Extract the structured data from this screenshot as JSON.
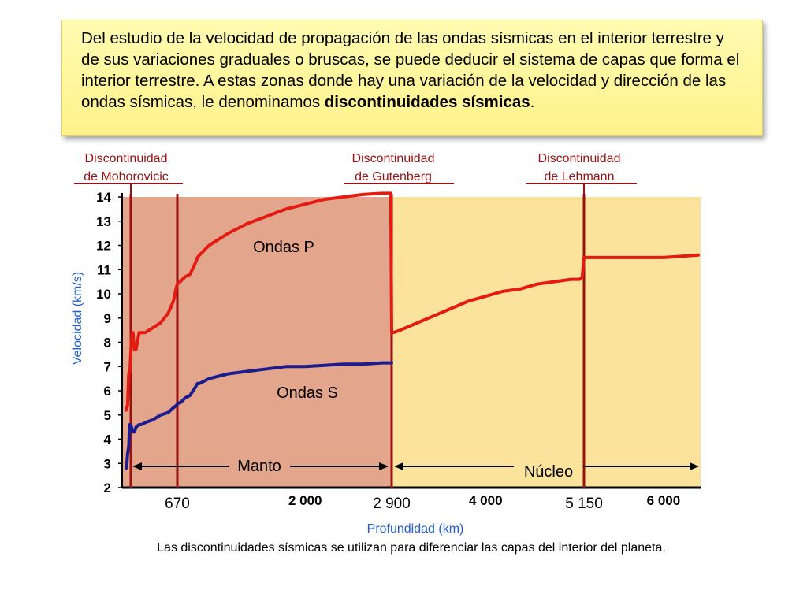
{
  "intro": {
    "text_before": "Del estudio de la velocidad de propagación de las ondas sísmicas en el interior terrestre y de sus variaciones graduales o bruscas, se puede deducir el sistema de capas que forma el interior terrestre. A estas zonas donde hay una variación de la velocidad y dirección de las ondas sísmicas, le denominamos ",
    "text_bold": "discontinuidades sísmicas",
    "text_after": "."
  },
  "caption": "Las discontinuidades sísmicas se utilizan para diferenciar las capas del interior del planeta.",
  "colors": {
    "p_wave": "#e31b12",
    "s_wave": "#1c1c8c",
    "mantle_bg": "#e3a68c",
    "core_bg": "#fbe39c",
    "discontinuity": "#9b1111",
    "axis_label": "#1f5fd6"
  },
  "chart_data": {
    "type": "line",
    "xlabel": "Profundidad (km)",
    "ylabel": "Velocidad (km/s)",
    "ylim": [
      2,
      14
    ],
    "xlim": [
      0,
      6371
    ],
    "y_ticks": [
      "2",
      "3",
      "4",
      "5",
      "6",
      "7",
      "8",
      "9",
      "10",
      "11",
      "12",
      "13",
      "14"
    ],
    "x_ticks": [
      {
        "value": 670,
        "label": "670",
        "bold": false
      },
      {
        "value": 2000,
        "label": "2 000",
        "bold": true
      },
      {
        "value": 2900,
        "label": "2 900",
        "bold": false
      },
      {
        "value": 4000,
        "label": "4 000",
        "bold": true
      },
      {
        "value": 5150,
        "label": "5 150",
        "bold": false
      },
      {
        "value": 6000,
        "label": "6 000",
        "bold": true
      }
    ],
    "discontinuities": [
      {
        "name": "Discontinuidad de Mohorovicic",
        "line1": "Discontinuidad",
        "line2": "de Mohorovicic",
        "depth": 35
      },
      {
        "name": "Discontinuidad de Gutenberg",
        "line1": "Discontinuidad",
        "line2": "de Gutenberg",
        "depth": 2900
      },
      {
        "name": "Discontinuidad de Lehmann",
        "line1": "Discontinuidad",
        "line2": "de Lehmann",
        "depth": 5150
      }
    ],
    "extra_line_depth": 670,
    "regions": [
      {
        "label": "Manto",
        "from": 35,
        "to": 2900
      },
      {
        "label": "Núcleo",
        "from": 2900,
        "to": 6371
      }
    ],
    "series": [
      {
        "name": "Ondas P",
        "x": [
          0,
          20,
          35,
          50,
          70,
          80,
          90,
          100,
          110,
          130,
          170,
          210,
          250,
          350,
          450,
          550,
          620,
          660,
          670,
          700,
          750,
          800,
          850,
          880,
          900,
          1000,
          1200,
          1400,
          1600,
          1800,
          2000,
          2200,
          2400,
          2600,
          2800,
          2890,
          2900,
          2920,
          3000,
          3200,
          3400,
          3600,
          3800,
          4000,
          4200,
          4400,
          4600,
          4800,
          5000,
          5100,
          5130,
          5150,
          5200,
          5500,
          5800,
          6000,
          6200,
          6371
        ],
        "values": [
          5.2,
          5.4,
          6.7,
          6.8,
          8.1,
          8.4,
          8.4,
          8.0,
          7.7,
          7.7,
          8.4,
          8.4,
          8.4,
          8.6,
          8.8,
          9.2,
          9.7,
          10.3,
          10.4,
          10.5,
          10.7,
          10.8,
          11.2,
          11.5,
          11.6,
          12.0,
          12.5,
          12.9,
          13.2,
          13.5,
          13.7,
          13.9,
          14.0,
          14.1,
          14.15,
          14.15,
          8.4,
          8.4,
          8.5,
          8.8,
          9.1,
          9.4,
          9.7,
          9.9,
          10.1,
          10.2,
          10.4,
          10.5,
          10.6,
          10.6,
          10.7,
          11.5,
          11.5,
          11.5,
          11.5,
          11.5,
          11.55,
          11.6
        ]
      },
      {
        "name": "Ondas S",
        "x": [
          0,
          10,
          20,
          35,
          45,
          60,
          80,
          90,
          110,
          130,
          170,
          200,
          260,
          350,
          450,
          550,
          620,
          660,
          680,
          700,
          750,
          800,
          850,
          880,
          900,
          1000,
          1200,
          1400,
          1600,
          1800,
          2000,
          2200,
          2400,
          2600,
          2800,
          2900
        ],
        "values": [
          2.8,
          3.0,
          3.4,
          3.7,
          4.6,
          4.6,
          4.4,
          4.3,
          4.3,
          4.5,
          4.6,
          4.6,
          4.7,
          4.8,
          5.0,
          5.1,
          5.3,
          5.4,
          5.5,
          5.5,
          5.7,
          5.8,
          6.1,
          6.3,
          6.3,
          6.5,
          6.7,
          6.8,
          6.9,
          7.0,
          7.0,
          7.05,
          7.1,
          7.1,
          7.15,
          7.15
        ]
      }
    ]
  }
}
